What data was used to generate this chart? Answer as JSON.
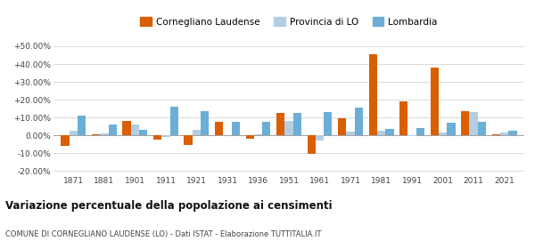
{
  "years": [
    1871,
    1881,
    1901,
    1911,
    1921,
    1931,
    1936,
    1951,
    1961,
    1971,
    1981,
    1991,
    2001,
    2011,
    2021
  ],
  "cornegliano": [
    -6.0,
    0.5,
    8.0,
    -2.5,
    -5.5,
    7.5,
    -2.0,
    12.5,
    -10.5,
    9.5,
    45.5,
    19.0,
    38.0,
    13.5,
    0.3
  ],
  "provincia": [
    2.5,
    1.0,
    6.0,
    -1.0,
    3.0,
    0.0,
    0.5,
    8.0,
    -3.0,
    2.0,
    2.5,
    -0.5,
    1.5,
    13.0,
    1.5
  ],
  "lombardia": [
    11.0,
    6.0,
    3.0,
    16.0,
    13.5,
    7.5,
    7.5,
    12.5,
    13.0,
    15.5,
    3.5,
    4.0,
    7.0,
    7.5,
    2.5
  ],
  "cornegliano_color": "#d95f02",
  "provincia_color": "#b3cde3",
  "lombardia_color": "#6baed6",
  "bar_width": 0.27,
  "ylim": [
    -22,
    55
  ],
  "yticks": [
    -20,
    -10,
    0,
    10,
    20,
    30,
    40,
    50
  ],
  "ytick_labels": [
    "-20.00%",
    "-10.00%",
    "0.00%",
    "+10.00%",
    "+20.00%",
    "+30.00%",
    "+40.00%",
    "+50.00%"
  ],
  "title": "Variazione percentuale della popolazione ai censimenti",
  "subtitle": "COMUNE DI CORNEGLIANO LAUDENSE (LO) - Dati ISTAT - Elaborazione TUTTITALIA.IT",
  "legend_labels": [
    "Cornegliano Laudense",
    "Provincia di LO",
    "Lombardia"
  ],
  "background_color": "#ffffff",
  "grid_color": "#d5d5d5"
}
